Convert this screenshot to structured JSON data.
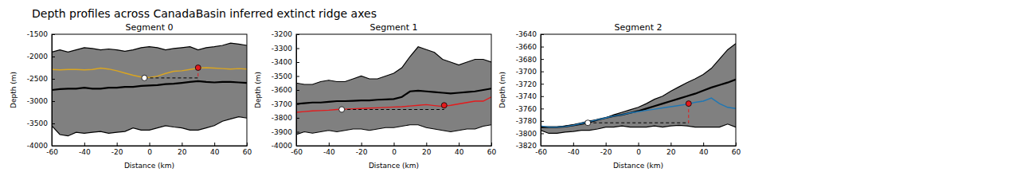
{
  "title": "Depth profiles across CanadaBasin inferred extinct ridge axes",
  "chart_data": [
    {
      "type": "line",
      "title": "Segment 0",
      "x_label": "Distance (km)",
      "y_label": "Depth (m)",
      "xlim": [
        -60,
        60
      ],
      "xticks": [
        -60,
        -40,
        -20,
        0,
        20,
        40,
        60
      ],
      "ylim": [
        -4000,
        -1500
      ],
      "yticks": [
        -4000,
        -3500,
        -3000,
        -2500,
        -2000,
        -1500
      ],
      "x": [
        -60,
        -55,
        -50,
        -45,
        -40,
        -35,
        -30,
        -25,
        -20,
        -15,
        -10,
        -5,
        0,
        5,
        10,
        15,
        20,
        25,
        30,
        35,
        40,
        45,
        50,
        55,
        60
      ],
      "series": [
        {
          "type": "area",
          "color": "#808080",
          "values": [
            -3550,
            -3750,
            -3780,
            -3700,
            -3720,
            -3700,
            -3680,
            -3720,
            -3700,
            -3680,
            -3600,
            -3650,
            -3650,
            -3600,
            -3550,
            -3580,
            -3600,
            -3650,
            -3650,
            -3600,
            -3550,
            -3450,
            -3400,
            -3350,
            -3380
          ],
          "upper": [
            -1900,
            -1850,
            -1900,
            -1850,
            -1800,
            -1820,
            -1850,
            -1830,
            -1850,
            -1880,
            -1850,
            -1800,
            -1780,
            -1800,
            -1850,
            -1820,
            -1800,
            -1780,
            -1850,
            -1800,
            -1780,
            -1750,
            -1700,
            -1720,
            -1750
          ]
        },
        {
          "type": "line",
          "color": "#000000",
          "values": [
            -2750,
            -2730,
            -2720,
            -2720,
            -2700,
            -2720,
            -2720,
            -2700,
            -2700,
            -2680,
            -2680,
            -2660,
            -2650,
            -2640,
            -2620,
            -2610,
            -2590,
            -2570,
            -2550,
            -2570,
            -2580,
            -2570,
            -2570,
            -2580,
            -2590
          ]
        },
        {
          "type": "line",
          "color": "#daa520",
          "values": [
            -2290,
            -2300,
            -2290,
            -2290,
            -2300,
            -2290,
            -2260,
            -2280,
            -2320,
            -2370,
            -2420,
            -2460,
            -2470,
            -2440,
            -2380,
            -2330,
            -2320,
            -2290,
            -2260,
            -2250,
            -2260,
            -2270,
            -2280,
            -2270,
            -2280
          ]
        },
        {
          "type": "scatter",
          "color": "#ffffff",
          "x": [
            -3
          ],
          "values": [
            -2480
          ]
        },
        {
          "type": "scatter",
          "color": "#e41a1c",
          "x": [
            30
          ],
          "values": [
            -2250
          ]
        }
      ]
    },
    {
      "type": "line",
      "title": "Segment 1",
      "x_label": "Distance (km)",
      "y_label": "Depth (m)",
      "xlim": [
        -60,
        60
      ],
      "xticks": [
        -60,
        -40,
        -20,
        0,
        20,
        40,
        60
      ],
      "ylim": [
        -4000,
        -3200
      ],
      "yticks": [
        -4000,
        -3900,
        -3800,
        -3700,
        -3600,
        -3500,
        -3400,
        -3300,
        -3200
      ],
      "x": [
        -60,
        -55,
        -50,
        -45,
        -40,
        -35,
        -30,
        -25,
        -20,
        -15,
        -10,
        -5,
        0,
        5,
        10,
        15,
        20,
        25,
        30,
        35,
        40,
        45,
        50,
        55,
        60
      ],
      "series": [
        {
          "type": "area",
          "color": "#808080",
          "values": [
            -3920,
            -3900,
            -3910,
            -3900,
            -3890,
            -3900,
            -3890,
            -3880,
            -3880,
            -3890,
            -3880,
            -3870,
            -3870,
            -3860,
            -3850,
            -3850,
            -3870,
            -3880,
            -3890,
            -3900,
            -3890,
            -3880,
            -3880,
            -3860,
            -3850
          ],
          "upper": [
            -3550,
            -3560,
            -3560,
            -3540,
            -3530,
            -3540,
            -3540,
            -3520,
            -3500,
            -3520,
            -3520,
            -3500,
            -3480,
            -3440,
            -3360,
            -3290,
            -3310,
            -3330,
            -3380,
            -3400,
            -3420,
            -3400,
            -3380,
            -3380,
            -3400
          ]
        },
        {
          "type": "line",
          "color": "#000000",
          "values": [
            -3700,
            -3695,
            -3690,
            -3690,
            -3685,
            -3680,
            -3680,
            -3678,
            -3675,
            -3675,
            -3670,
            -3668,
            -3665,
            -3650,
            -3610,
            -3605,
            -3610,
            -3615,
            -3620,
            -3625,
            -3620,
            -3615,
            -3610,
            -3600,
            -3590
          ]
        },
        {
          "type": "line",
          "color": "#e41a1c",
          "values": [
            -3760,
            -3755,
            -3750,
            -3748,
            -3745,
            -3740,
            -3738,
            -3735,
            -3733,
            -3730,
            -3728,
            -3725,
            -3722,
            -3720,
            -3715,
            -3710,
            -3705,
            -3712,
            -3718,
            -3710,
            -3700,
            -3690,
            -3680,
            -3680,
            -3650
          ]
        },
        {
          "type": "scatter",
          "color": "#ffffff",
          "x": [
            -32
          ],
          "values": [
            -3740
          ]
        },
        {
          "type": "scatter",
          "color": "#e41a1c",
          "x": [
            31
          ],
          "values": [
            -3710
          ]
        }
      ]
    },
    {
      "type": "line",
      "title": "Segment 2",
      "x_label": "Distance (km)",
      "y_label": "Depth (m)",
      "xlim": [
        -60,
        60
      ],
      "xticks": [
        -60,
        -40,
        -20,
        0,
        20,
        40,
        60
      ],
      "ylim": [
        -3820,
        -3640
      ],
      "yticks": [
        -3820,
        -3800,
        -3780,
        -3760,
        -3740,
        -3720,
        -3700,
        -3680,
        -3660,
        -3640
      ],
      "x": [
        -60,
        -55,
        -50,
        -45,
        -40,
        -35,
        -30,
        -25,
        -20,
        -15,
        -10,
        -5,
        0,
        5,
        10,
        15,
        20,
        25,
        30,
        35,
        40,
        45,
        50,
        55,
        60
      ],
      "series": [
        {
          "type": "area",
          "color": "#808080",
          "values": [
            -3795,
            -3800,
            -3800,
            -3798,
            -3797,
            -3795,
            -3795,
            -3793,
            -3790,
            -3790,
            -3788,
            -3790,
            -3790,
            -3790,
            -3788,
            -3790,
            -3788,
            -3787,
            -3788,
            -3790,
            -3790,
            -3790,
            -3790,
            -3785,
            -3790
          ],
          "upper": [
            -3790,
            -3790,
            -3790,
            -3788,
            -3786,
            -3783,
            -3780,
            -3778,
            -3775,
            -3770,
            -3766,
            -3762,
            -3758,
            -3752,
            -3745,
            -3740,
            -3732,
            -3725,
            -3718,
            -3712,
            -3705,
            -3695,
            -3680,
            -3665,
            -3655
          ]
        },
        {
          "type": "line",
          "color": "#000000",
          "values": [
            -3790,
            -3790,
            -3790,
            -3789,
            -3787,
            -3785,
            -3782,
            -3778,
            -3775,
            -3772,
            -3770,
            -3767,
            -3764,
            -3760,
            -3756,
            -3752,
            -3748,
            -3744,
            -3740,
            -3736,
            -3731,
            -3726,
            -3722,
            -3718,
            -3713
          ]
        },
        {
          "type": "line",
          "color": "#1f77b4",
          "values": [
            -3788,
            -3790,
            -3790,
            -3789,
            -3787,
            -3784,
            -3781,
            -3778,
            -3775,
            -3772,
            -3770,
            -3767,
            -3765,
            -3763,
            -3761,
            -3759,
            -3757,
            -3755,
            -3753,
            -3750,
            -3748,
            -3743,
            -3752,
            -3758,
            -3760
          ]
        },
        {
          "type": "scatter",
          "color": "#ffffff",
          "x": [
            -31
          ],
          "values": [
            -3783
          ]
        },
        {
          "type": "scatter",
          "color": "#e41a1c",
          "x": [
            31
          ],
          "values": [
            -3752
          ]
        }
      ]
    }
  ]
}
